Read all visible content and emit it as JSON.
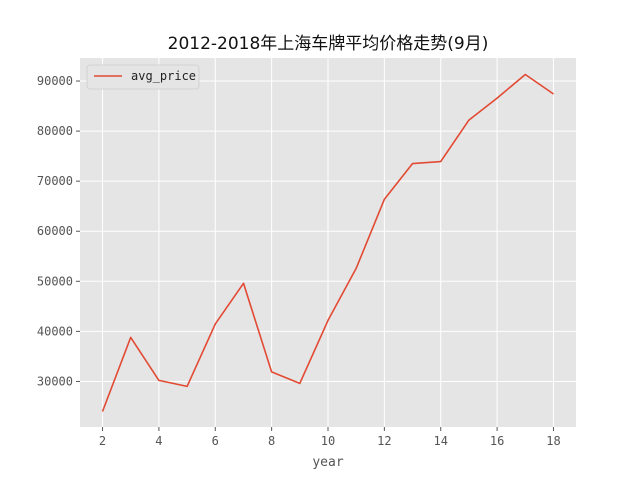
{
  "chart_data": {
    "type": "line",
    "title": "2012-2018年上海车牌平均价格走势(9月)",
    "xlabel": "year",
    "ylabel": "",
    "xlim": [
      1.2,
      18.8
    ],
    "ylim": [
      20900,
      94600
    ],
    "xticks": [
      2,
      4,
      6,
      8,
      10,
      12,
      14,
      16,
      18
    ],
    "yticks": [
      30000,
      40000,
      50000,
      60000,
      70000,
      80000,
      90000
    ],
    "grid": true,
    "legend": "top-left",
    "series": [
      {
        "name": "avg_price",
        "color": "#E24A33",
        "x": [
          2,
          3,
          4,
          5,
          6,
          7,
          8,
          9,
          10,
          11,
          12,
          13,
          14,
          15,
          16,
          17,
          18
        ],
        "y": [
          24000,
          38800,
          30200,
          29000,
          41500,
          49600,
          31900,
          29600,
          42200,
          52600,
          66400,
          73500,
          73900,
          82200,
          86600,
          91300,
          87400
        ]
      }
    ]
  },
  "colors": {
    "plot_bg": "#E5E5E5",
    "grid": "#FFFFFF",
    "text": "#555555",
    "line": "#E24A33"
  }
}
